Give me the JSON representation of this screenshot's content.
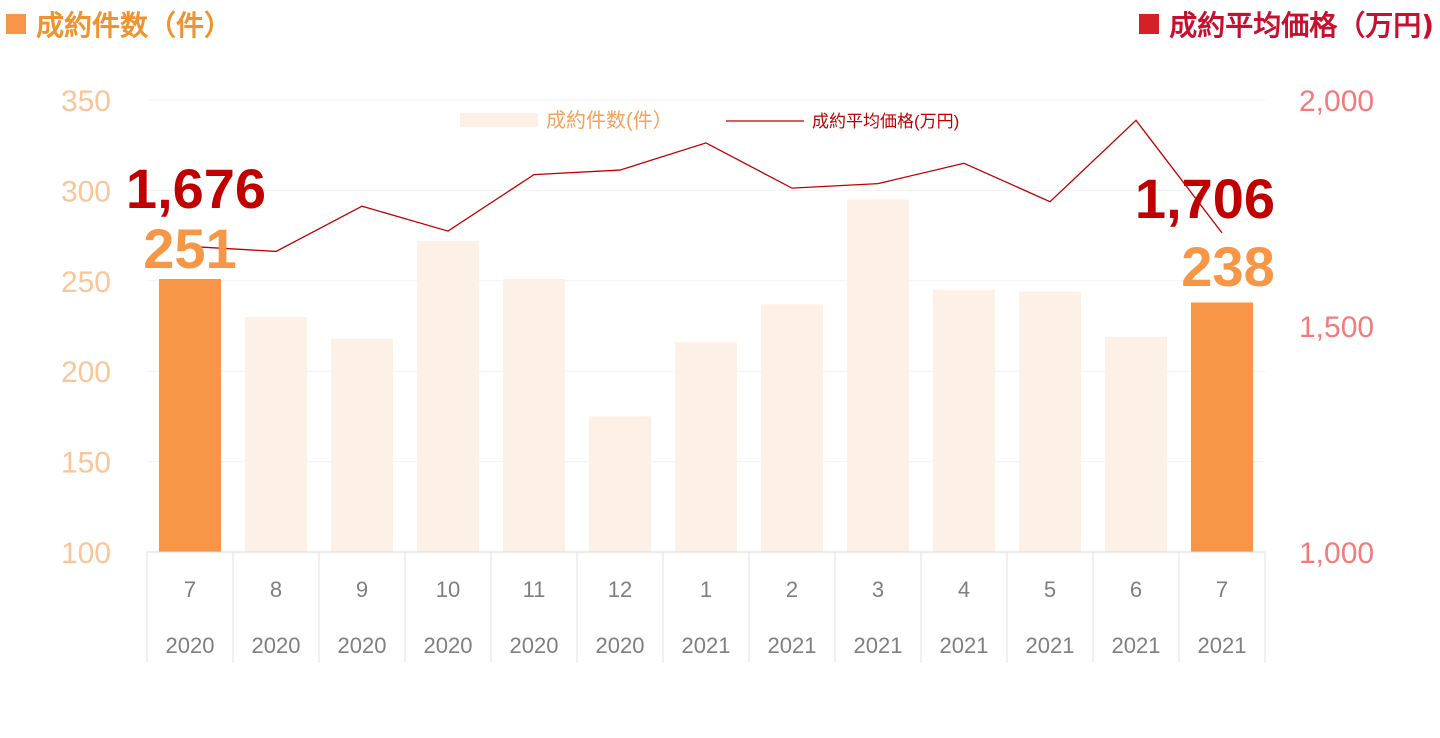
{
  "header": {
    "left_title": "成約件数（件）",
    "right_title": "成約平均価格（万円)",
    "left_color": "#f0922e",
    "right_color": "#c8102e"
  },
  "legend": {
    "bar_label": "成約件数(件）",
    "line_label": "成約平均価格(万円)"
  },
  "callouts": {
    "first_price": "1,676",
    "first_count": "251",
    "last_price": "1,706",
    "last_count": "238"
  },
  "colors": {
    "bar_highlight": "#f79646",
    "bar_muted": "#fdf0e7",
    "line": "#c00000",
    "left_axis": "#f9c59a",
    "right_axis": "#f27b7b",
    "category_text": "#7f7f7f",
    "callout_price": "#c00000",
    "callout_count": "#f79646"
  },
  "chart_data": {
    "type": "bar",
    "categories": [
      "7",
      "8",
      "9",
      "10",
      "11",
      "12",
      "1",
      "2",
      "3",
      "4",
      "5",
      "6",
      "7"
    ],
    "years": [
      "2020",
      "2020",
      "2020",
      "2020",
      "2020",
      "2020",
      "2021",
      "2021",
      "2021",
      "2021",
      "2021",
      "2021",
      "2021"
    ],
    "series": [
      {
        "name": "成約件数(件）",
        "type": "bar",
        "axis": "left",
        "values": [
          251,
          230,
          218,
          272,
          251,
          175,
          216,
          237,
          295,
          245,
          244,
          219,
          238
        ]
      },
      {
        "name": "成約平均価格(万円)",
        "type": "line",
        "axis": "right",
        "values": [
          1676,
          1665,
          1765,
          1710,
          1835,
          1845,
          1905,
          1805,
          1815,
          1860,
          1775,
          1955,
          1706
        ]
      }
    ],
    "highlight_indices": [
      0,
      12
    ],
    "y_left": {
      "min": 100,
      "max": 350,
      "ticks": [
        100,
        150,
        200,
        250,
        300,
        350
      ]
    },
    "y_right": {
      "min": 1000,
      "max": 2000,
      "ticks": [
        "1,000",
        "1,500",
        "2,000"
      ]
    },
    "grid": true,
    "legend_position": "top-center"
  }
}
